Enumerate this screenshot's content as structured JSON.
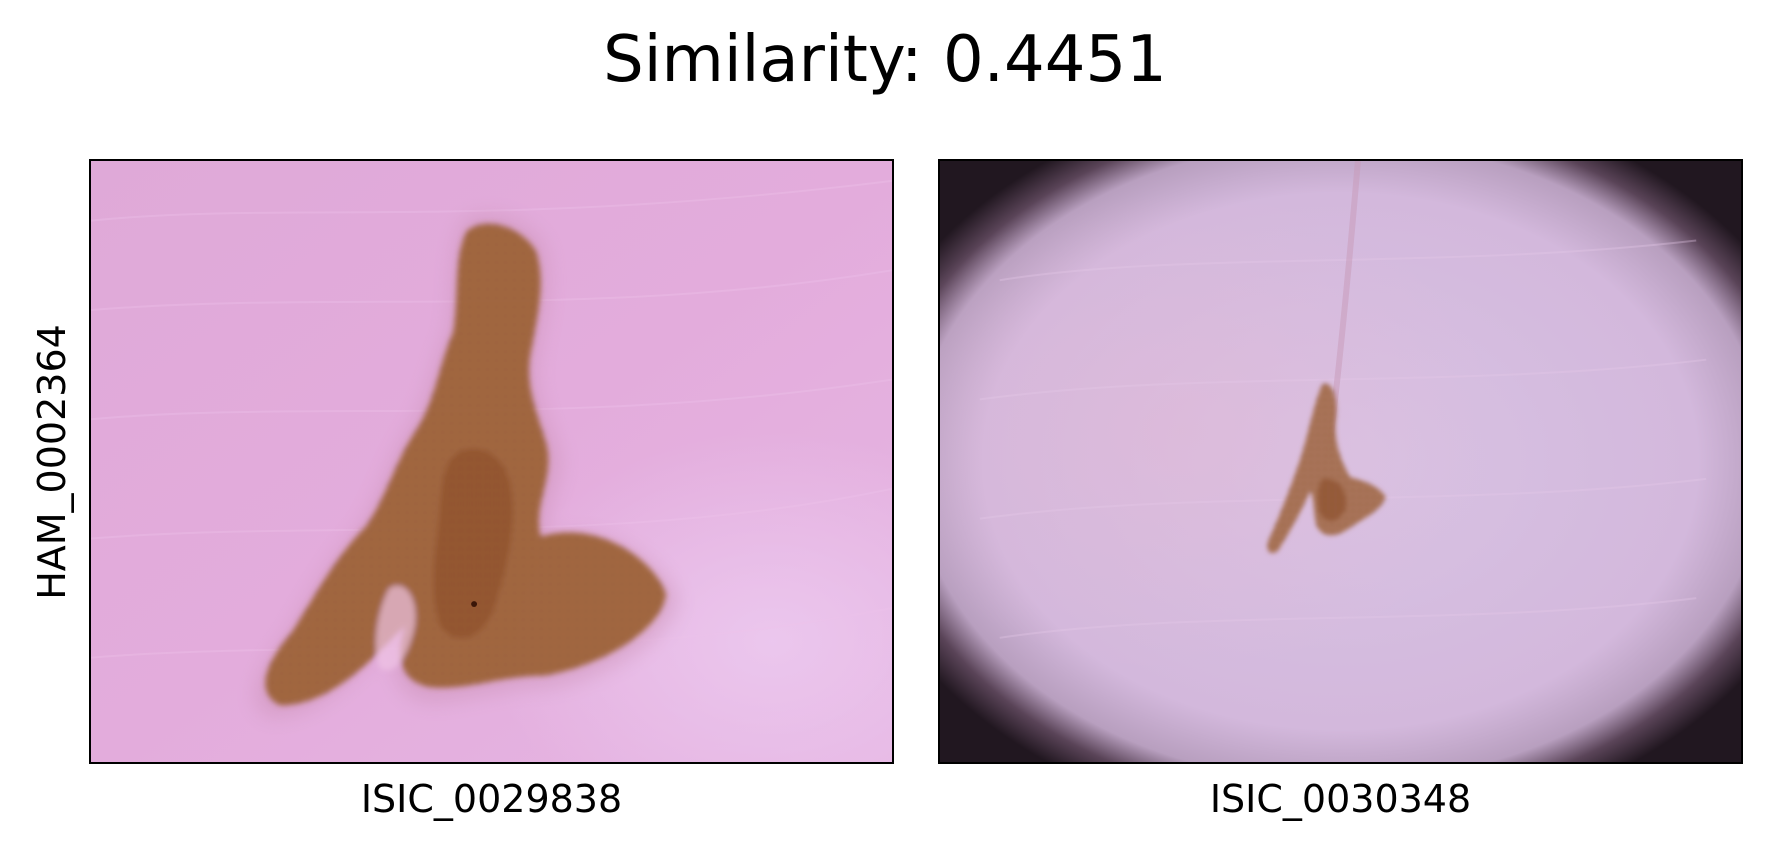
{
  "figure": {
    "title": "Similarity: 0.4451",
    "row_label": "HAM_0002364",
    "panels": [
      {
        "label": "ISIC_0029838",
        "image": "dermoscopy-lesion-large"
      },
      {
        "label": "ISIC_0030348",
        "image": "dermoscopy-lesion-small"
      }
    ],
    "colors": {
      "skin_pink": "#e3acdc",
      "skin_lavender": "#d9c3e6",
      "lesion_brown": "#9a5a2e",
      "vignette_dark": "#241a22"
    }
  }
}
